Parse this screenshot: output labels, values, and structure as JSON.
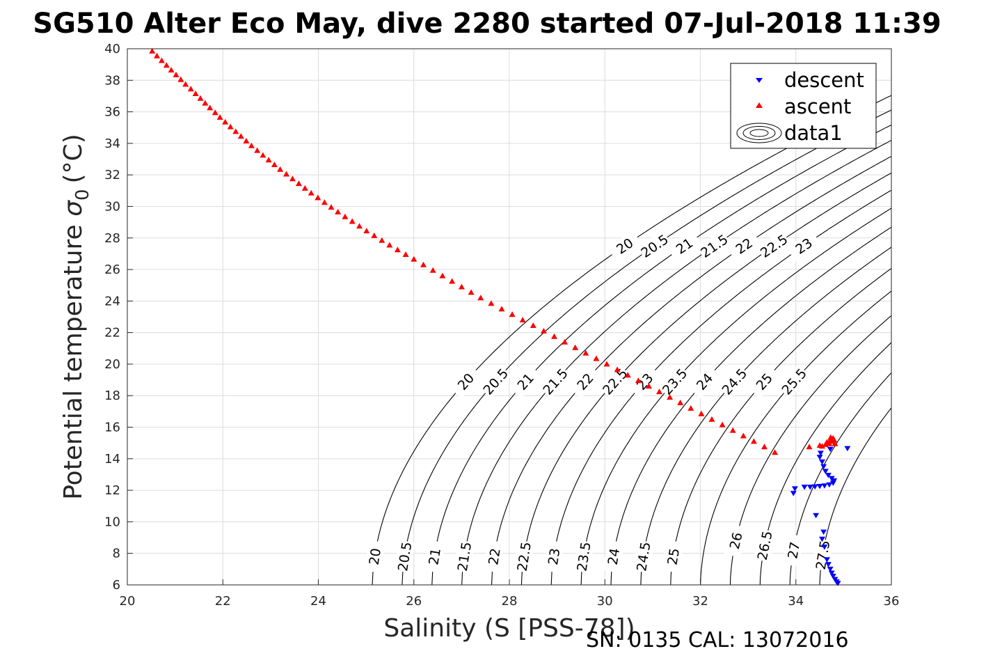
{
  "chart_data": {
    "type": "scatter",
    "title": "SG510 Alter Eco May, dive 2280 started 07-Jul-2018 11:39",
    "xlabel": "Salinity (S [PSS-78])",
    "ylabel_main": "Potential temperature",
    "ylabel_sym": "σ",
    "ylabel_sub": "0",
    "ylabel_unit": "(°C)",
    "footer": "SN: 0135  CAL: 13072016",
    "xlim": [
      20,
      36
    ],
    "ylim": [
      6,
      40
    ],
    "xticks": [
      20,
      22,
      24,
      26,
      28,
      30,
      32,
      34,
      36
    ],
    "yticks": [
      6,
      8,
      10,
      12,
      14,
      16,
      18,
      20,
      22,
      24,
      26,
      28,
      30,
      32,
      34,
      36,
      38,
      40
    ],
    "grid": true,
    "legend_position": "top-right",
    "legend": [
      "descent",
      "ascent",
      "data1"
    ],
    "contour_levels": [
      20,
      20.5,
      21,
      21.5,
      22,
      22.5,
      23,
      23.5,
      24,
      24.5,
      25,
      25.5,
      26,
      26.5,
      27,
      27.5
    ],
    "series": [
      {
        "name": "descent",
        "color": "#0000ff",
        "marker": "triangle-down",
        "points": [
          [
            34.72,
            14.6
          ],
          [
            35.08,
            14.65
          ],
          [
            34.52,
            14.35
          ],
          [
            34.5,
            14.1
          ],
          [
            34.55,
            13.8
          ],
          [
            34.58,
            13.5
          ],
          [
            34.62,
            13.2
          ],
          [
            34.68,
            12.95
          ],
          [
            34.75,
            12.75
          ],
          [
            34.8,
            12.6
          ],
          [
            34.78,
            12.45
          ],
          [
            34.7,
            12.35
          ],
          [
            34.6,
            12.28
          ],
          [
            34.5,
            12.25
          ],
          [
            34.4,
            12.22
          ],
          [
            34.3,
            12.2
          ],
          [
            34.18,
            12.2
          ],
          [
            33.98,
            12.1
          ],
          [
            33.95,
            11.8
          ],
          [
            34.42,
            10.4
          ],
          [
            34.58,
            9.35
          ],
          [
            34.55,
            8.9
          ],
          [
            34.6,
            8.4
          ],
          [
            34.65,
            7.6
          ],
          [
            34.68,
            7.3
          ],
          [
            34.72,
            7.0
          ],
          [
            34.75,
            6.75
          ],
          [
            34.78,
            6.55
          ],
          [
            34.82,
            6.35
          ],
          [
            34.85,
            6.2
          ],
          [
            34.88,
            6.1
          ]
        ]
      },
      {
        "name": "ascent",
        "color": "#ff0000",
        "marker": "triangle-up",
        "points": [
          [
            20.52,
            39.85
          ],
          [
            20.62,
            39.55
          ],
          [
            20.72,
            39.25
          ],
          [
            20.82,
            38.95
          ],
          [
            20.92,
            38.65
          ],
          [
            21.02,
            38.35
          ],
          [
            21.12,
            38.05
          ],
          [
            21.22,
            37.75
          ],
          [
            21.33,
            37.45
          ],
          [
            21.43,
            37.15
          ],
          [
            21.53,
            36.85
          ],
          [
            21.63,
            36.55
          ],
          [
            21.73,
            36.25
          ],
          [
            21.84,
            35.95
          ],
          [
            21.94,
            35.65
          ],
          [
            22.05,
            35.35
          ],
          [
            22.16,
            35.05
          ],
          [
            22.27,
            34.75
          ],
          [
            22.38,
            34.45
          ],
          [
            22.49,
            34.15
          ],
          [
            22.6,
            33.85
          ],
          [
            22.72,
            33.55
          ],
          [
            22.84,
            33.25
          ],
          [
            22.96,
            32.95
          ],
          [
            23.08,
            32.65
          ],
          [
            23.2,
            32.35
          ],
          [
            23.33,
            32.05
          ],
          [
            23.46,
            31.75
          ],
          [
            23.59,
            31.45
          ],
          [
            23.72,
            31.15
          ],
          [
            23.85,
            30.85
          ],
          [
            23.99,
            30.55
          ],
          [
            24.13,
            30.25
          ],
          [
            24.27,
            29.95
          ],
          [
            24.41,
            29.65
          ],
          [
            24.56,
            29.35
          ],
          [
            24.71,
            29.05
          ],
          [
            24.86,
            28.75
          ],
          [
            25.01,
            28.45
          ],
          [
            25.17,
            28.15
          ],
          [
            25.33,
            27.85
          ],
          [
            25.49,
            27.55
          ],
          [
            25.66,
            27.25
          ],
          [
            25.83,
            26.95
          ],
          [
            26.0,
            26.65
          ],
          [
            26.2,
            26.3
          ],
          [
            26.4,
            25.95
          ],
          [
            26.6,
            25.6
          ],
          [
            26.8,
            25.25
          ],
          [
            27.0,
            24.9
          ],
          [
            27.2,
            24.55
          ],
          [
            27.4,
            24.2
          ],
          [
            27.62,
            23.85
          ],
          [
            27.84,
            23.5
          ],
          [
            28.06,
            23.15
          ],
          [
            28.28,
            22.8
          ],
          [
            28.5,
            22.45
          ],
          [
            28.72,
            22.1
          ],
          [
            28.94,
            21.75
          ],
          [
            29.16,
            21.4
          ],
          [
            29.38,
            21.05
          ],
          [
            29.6,
            20.7
          ],
          [
            29.82,
            20.35
          ],
          [
            30.04,
            20.0
          ],
          [
            30.26,
            19.65
          ],
          [
            30.48,
            19.3
          ],
          [
            30.7,
            18.95
          ],
          [
            30.92,
            18.6
          ],
          [
            31.14,
            18.25
          ],
          [
            31.36,
            17.9
          ],
          [
            31.58,
            17.55
          ],
          [
            31.8,
            17.2
          ],
          [
            32.02,
            16.85
          ],
          [
            32.24,
            16.5
          ],
          [
            32.46,
            16.15
          ],
          [
            32.68,
            15.8
          ],
          [
            32.9,
            15.45
          ],
          [
            33.12,
            15.1
          ],
          [
            33.34,
            14.75
          ],
          [
            33.56,
            14.4
          ],
          [
            34.28,
            14.75
          ],
          [
            34.5,
            14.85
          ],
          [
            34.55,
            14.8
          ],
          [
            34.62,
            14.9
          ],
          [
            34.68,
            15.0
          ],
          [
            34.72,
            15.15
          ],
          [
            34.75,
            15.25
          ],
          [
            34.78,
            15.3
          ],
          [
            34.65,
            15.05
          ],
          [
            34.7,
            14.95
          ],
          [
            34.82,
            14.95
          ],
          [
            34.78,
            15.1
          ],
          [
            34.73,
            15.35
          ],
          [
            34.8,
            15.2
          ]
        ]
      }
    ]
  }
}
